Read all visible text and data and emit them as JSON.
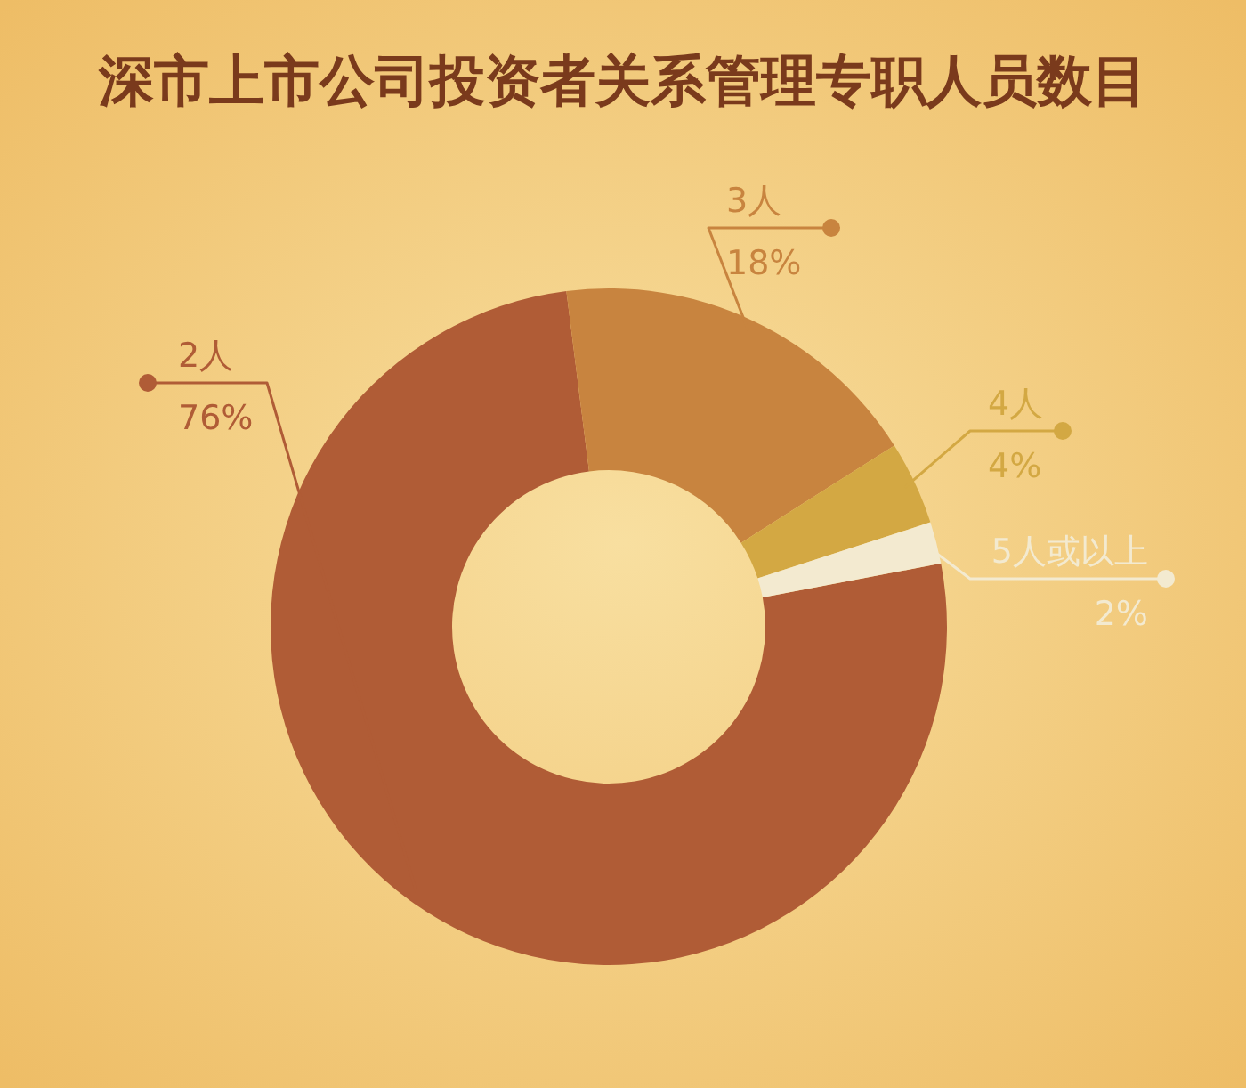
{
  "chart_data": {
    "type": "donut",
    "title": "深市上市公司投资者关系管理专职人员数目",
    "categories": [
      "2人",
      "3人",
      "4人",
      "5人或以上"
    ],
    "values": [
      76,
      18,
      4,
      2
    ],
    "colors": [
      "#b05c36",
      "#c8843f",
      "#d3a843",
      "#f3ead0"
    ],
    "value_labels": [
      "76%",
      "18%",
      "4%",
      "2%"
    ]
  }
}
